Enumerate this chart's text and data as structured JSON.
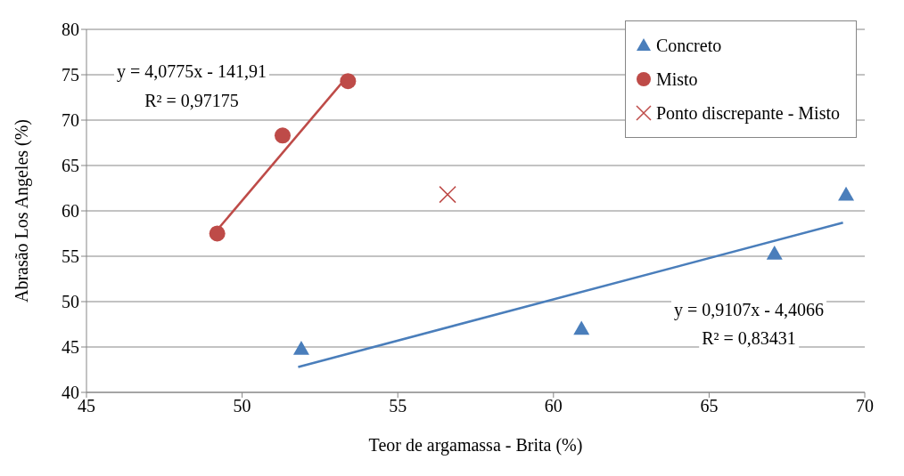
{
  "chart_data": {
    "type": "scatter",
    "xlabel": "Teor de argamassa - Brita (%)",
    "ylabel": "Abrasão Los Angeles (%)",
    "xlim": [
      45,
      70
    ],
    "xticks": [
      45,
      50,
      55,
      60,
      65,
      70
    ],
    "ylim": [
      40,
      80
    ],
    "yticks": [
      40,
      45,
      50,
      55,
      60,
      65,
      70,
      75,
      80
    ],
    "grid": "y",
    "legend": "top right",
    "series": [
      {
        "name": "Concreto",
        "color": "#4a7ebb",
        "marker": "triangle",
        "x": [
          51.9,
          60.9,
          67.1,
          69.4
        ],
        "values": [
          44.8,
          47.0,
          55.3,
          61.8
        ]
      },
      {
        "name": "Misto",
        "color": "#be4b48",
        "marker": "circle",
        "x": [
          49.2,
          51.3,
          53.4
        ],
        "values": [
          57.5,
          68.3,
          74.3
        ]
      },
      {
        "name": "Ponto discrepante - Misto",
        "color": "#be4b48",
        "marker": "cross",
        "x": [
          56.6
        ],
        "values": [
          61.8
        ]
      },
      {
        "type": "line",
        "color": "#be4b48",
        "marker": "none",
        "x": [
          49.2,
          53.3
        ],
        "values": [
          57.9,
          74.5
        ]
      },
      {
        "type": "line",
        "color": "#4a7ebb",
        "marker": "none",
        "x": [
          51.8,
          69.3
        ],
        "values": [
          42.8,
          58.7
        ]
      }
    ],
    "annotations": [
      "y = 4,0775x - 141,91",
      "R² = 0,97175",
      "y = 0,9107x - 4,4066",
      "R² = 0,83431"
    ]
  }
}
